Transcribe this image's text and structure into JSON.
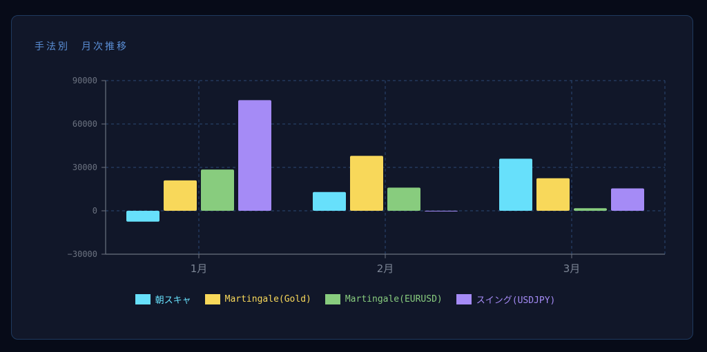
{
  "title": "手法別　月次推移",
  "colors": {
    "background": "#070b18",
    "panel": "#111729",
    "grid": "#2a4a75",
    "axis": "#6b7280"
  },
  "chart_data": {
    "type": "bar",
    "categories": [
      "1月",
      "2月",
      "3月"
    ],
    "series": [
      {
        "name": "朝スキャ",
        "color": "#67e0fb",
        "values": [
          -7500,
          13000,
          36000
        ]
      },
      {
        "name": "Martingale(Gold)",
        "color": "#f8d85a",
        "values": [
          21000,
          38000,
          22500
        ]
      },
      {
        "name": "Martingale(EURUSD)",
        "color": "#88cc7e",
        "values": [
          28500,
          16000,
          1800
        ]
      },
      {
        "name": "スイング(USDJPY)",
        "color": "#a58bf6",
        "values": [
          76500,
          -500,
          15500
        ]
      }
    ],
    "ylim": [
      -30000,
      90000
    ],
    "yticks": [
      -30000,
      0,
      30000,
      60000,
      90000
    ],
    "grid": true,
    "legend": "bottom"
  }
}
